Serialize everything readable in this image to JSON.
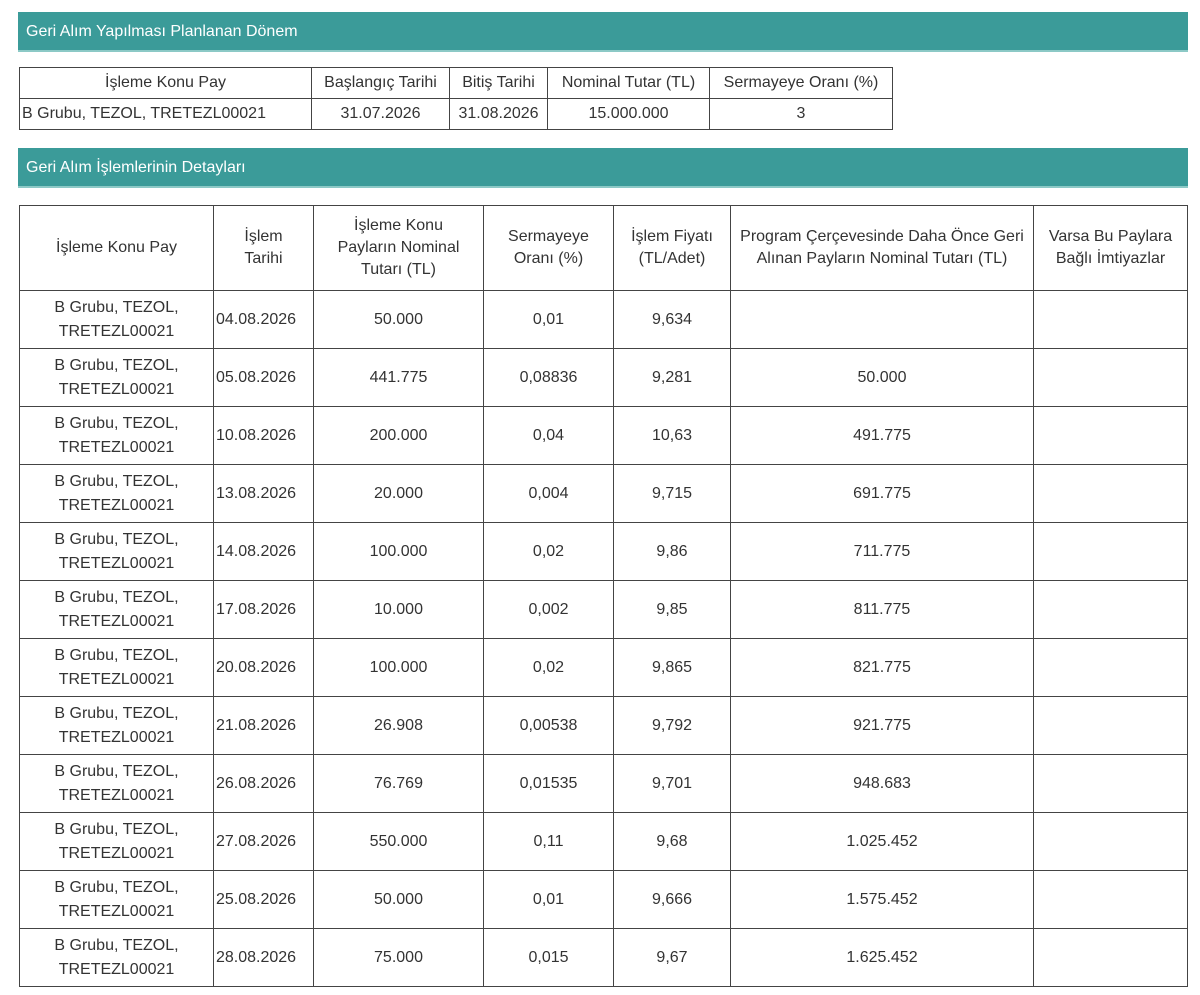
{
  "section1": {
    "title": "Geri Alım Yapılması Planlanan Dönem",
    "headers": [
      "İşleme Konu Pay",
      "Başlangıç Tarihi",
      "Bitiş Tarihi",
      "Nominal Tutar (TL)",
      "Sermayeye Oranı (%)"
    ],
    "row": [
      "B Grubu, TEZOL, TRETEZL00021",
      "31.07.2026",
      "31.08.2026",
      "15.000.000",
      "3"
    ]
  },
  "section2": {
    "title": "Geri Alım İşlemlerinin Detayları",
    "headers": [
      "İşleme Konu Pay",
      "İşlem Tarihi",
      "İşleme Konu Payların Nominal Tutarı (TL)",
      "Sermayeye Oranı (%)",
      "İşlem Fiyatı (TL/Adet)",
      "Program Çerçevesinde Daha Önce Geri Alınan Payların Nominal Tutarı (TL)",
      "Varsa Bu Paylara Bağlı İmtiyazlar"
    ],
    "rows": [
      [
        "B Grubu, TEZOL, TRETEZL00021",
        "04.08.2026",
        "50.000",
        "0,01",
        "9,634",
        "",
        ""
      ],
      [
        "B Grubu, TEZOL, TRETEZL00021",
        "05.08.2026",
        "441.775",
        "0,08836",
        "9,281",
        "50.000",
        ""
      ],
      [
        "B Grubu, TEZOL, TRETEZL00021",
        "10.08.2026",
        "200.000",
        "0,04",
        "10,63",
        "491.775",
        ""
      ],
      [
        "B Grubu, TEZOL, TRETEZL00021",
        "13.08.2026",
        "20.000",
        "0,004",
        "9,715",
        "691.775",
        ""
      ],
      [
        "B Grubu, TEZOL, TRETEZL00021",
        "14.08.2026",
        "100.000",
        "0,02",
        "9,86",
        "711.775",
        ""
      ],
      [
        "B Grubu, TEZOL, TRETEZL00021",
        "17.08.2026",
        "10.000",
        "0,002",
        "9,85",
        "811.775",
        ""
      ],
      [
        "B Grubu, TEZOL, TRETEZL00021",
        "20.08.2026",
        "100.000",
        "0,02",
        "9,865",
        "821.775",
        ""
      ],
      [
        "B Grubu, TEZOL, TRETEZL00021",
        "21.08.2026",
        "26.908",
        "0,00538",
        "9,792",
        "921.775",
        ""
      ],
      [
        "B Grubu, TEZOL, TRETEZL00021",
        "26.08.2026",
        "76.769",
        "0,01535",
        "9,701",
        "948.683",
        ""
      ],
      [
        "B Grubu, TEZOL, TRETEZL00021",
        "27.08.2026",
        "550.000",
        "0,11",
        "9,68",
        "1.025.452",
        ""
      ],
      [
        "B Grubu, TEZOL, TRETEZL00021",
        "25.08.2026",
        "50.000",
        "0,01",
        "9,666",
        "1.575.452",
        ""
      ],
      [
        "B Grubu, TEZOL, TRETEZL00021",
        "28.08.2026",
        "75.000",
        "0,015",
        "9,67",
        "1.625.452",
        ""
      ]
    ]
  },
  "colors": {
    "header_bg": "#3b9b99",
    "header_text": "#ffffff",
    "border": "#444444",
    "text": "#333333"
  }
}
